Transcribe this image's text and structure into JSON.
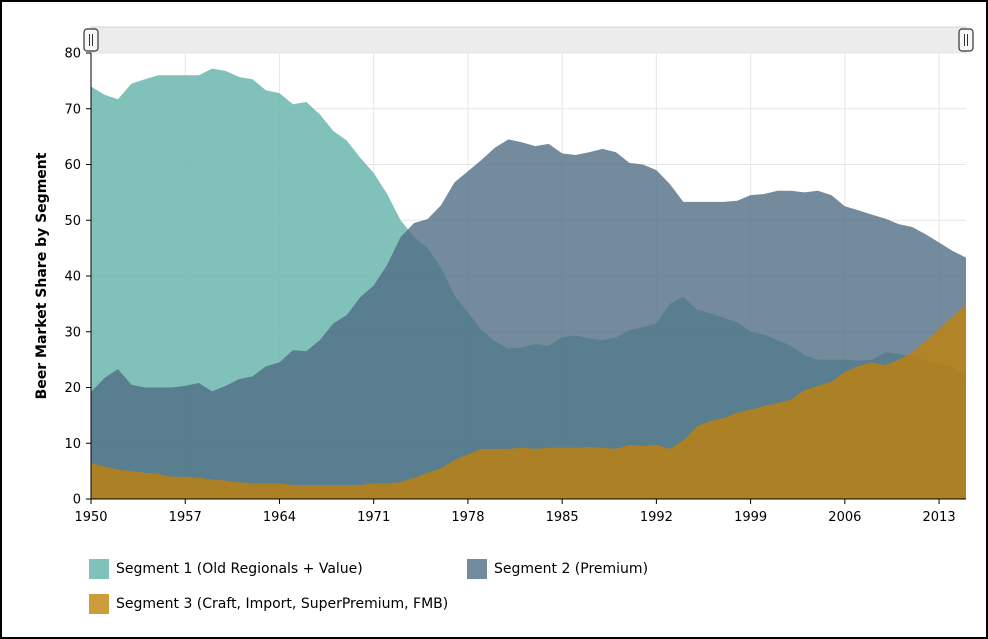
{
  "chart_data": {
    "type": "area",
    "xlabel": "",
    "ylabel": "Beer Market Share by Segment",
    "xlim": [
      1950,
      2015
    ],
    "ylim": [
      0,
      80
    ],
    "x_ticks": [
      "1950",
      "1957",
      "1964",
      "1971",
      "1978",
      "1985",
      "1992",
      "1999",
      "2006",
      "2013"
    ],
    "y_ticks": [
      "0",
      "10",
      "20",
      "30",
      "40",
      "50",
      "60",
      "70",
      "80"
    ],
    "grid": true,
    "legend_position": "bottom",
    "x": [
      1950,
      1951,
      1952,
      1953,
      1954,
      1955,
      1956,
      1957,
      1958,
      1959,
      1960,
      1961,
      1962,
      1963,
      1964,
      1965,
      1966,
      1967,
      1968,
      1969,
      1970,
      1971,
      1972,
      1973,
      1974,
      1975,
      1976,
      1977,
      1978,
      1979,
      1980,
      1981,
      1982,
      1983,
      1984,
      1985,
      1986,
      1987,
      1988,
      1989,
      1990,
      1991,
      1992,
      1993,
      1994,
      1995,
      1996,
      1997,
      1998,
      1999,
      2000,
      2001,
      2002,
      2003,
      2004,
      2005,
      2006,
      2007,
      2008,
      2009,
      2010,
      2011,
      2012,
      2013,
      2014,
      2015
    ],
    "series": [
      {
        "name": "Segment 1 (Old Regionals + Value)",
        "color": "#6ab7ae",
        "values": [
          74.0,
          72.5,
          71.7,
          74.5,
          75.3,
          76.0,
          76.0,
          76.0,
          76.0,
          77.2,
          76.8,
          75.7,
          75.3,
          73.3,
          72.8,
          70.8,
          71.2,
          69.0,
          66.0,
          64.3,
          61.2,
          58.5,
          54.7,
          50.0,
          47.0,
          45.0,
          41.5,
          36.5,
          33.5,
          30.3,
          28.3,
          27.0,
          27.2,
          27.8,
          27.5,
          29.0,
          29.3,
          28.8,
          28.5,
          29.0,
          30.3,
          30.8,
          31.5,
          35.0,
          36.3,
          34.0,
          33.3,
          32.5,
          31.7,
          30.0,
          29.5,
          28.5,
          27.5,
          25.8,
          25.0,
          25.0,
          25.0,
          24.8,
          25.0,
          26.3,
          26.0,
          25.7,
          25.0,
          24.3,
          23.5,
          22.3
        ]
      },
      {
        "name": "Segment 2 (Premium)",
        "color": "#4d6a83",
        "values": [
          19.2,
          21.7,
          23.3,
          20.5,
          20.0,
          20.0,
          20.0,
          20.3,
          20.8,
          19.3,
          20.3,
          21.5,
          22.0,
          23.8,
          24.5,
          26.7,
          26.5,
          28.5,
          31.5,
          33.0,
          36.2,
          38.3,
          42.0,
          47.0,
          49.5,
          50.2,
          52.7,
          56.8,
          58.8,
          60.8,
          63.0,
          64.5,
          64.0,
          63.3,
          63.7,
          62.0,
          61.7,
          62.2,
          62.8,
          62.2,
          60.3,
          60.0,
          59.0,
          56.5,
          53.3,
          53.3,
          53.3,
          53.3,
          53.5,
          54.5,
          54.7,
          55.3,
          55.3,
          55.0,
          55.3,
          54.5,
          52.5,
          51.8,
          51.0,
          50.3,
          49.3,
          48.8,
          47.5,
          46.0,
          44.5,
          43.3
        ]
      },
      {
        "name": "Segment 3 (Craft, Import, SuperPremium, FMB)",
        "color": "#c2820a",
        "values": [
          6.5,
          5.8,
          5.3,
          5.0,
          4.7,
          4.5,
          4.0,
          4.0,
          3.8,
          3.5,
          3.3,
          3.0,
          2.8,
          2.8,
          2.8,
          2.5,
          2.5,
          2.5,
          2.5,
          2.5,
          2.5,
          2.8,
          2.8,
          3.0,
          3.8,
          4.7,
          5.5,
          7.0,
          8.0,
          9.0,
          9.0,
          9.0,
          9.2,
          9.0,
          9.2,
          9.2,
          9.2,
          9.3,
          9.2,
          9.0,
          9.7,
          9.5,
          9.7,
          9.0,
          10.5,
          13.0,
          14.0,
          14.5,
          15.5,
          16.0,
          16.7,
          17.2,
          17.8,
          19.5,
          20.3,
          21.0,
          22.8,
          23.8,
          24.5,
          24.0,
          25.0,
          26.3,
          28.3,
          30.5,
          32.7,
          35.0
        ]
      }
    ]
  },
  "slider": {
    "handle_glyph": "||"
  }
}
